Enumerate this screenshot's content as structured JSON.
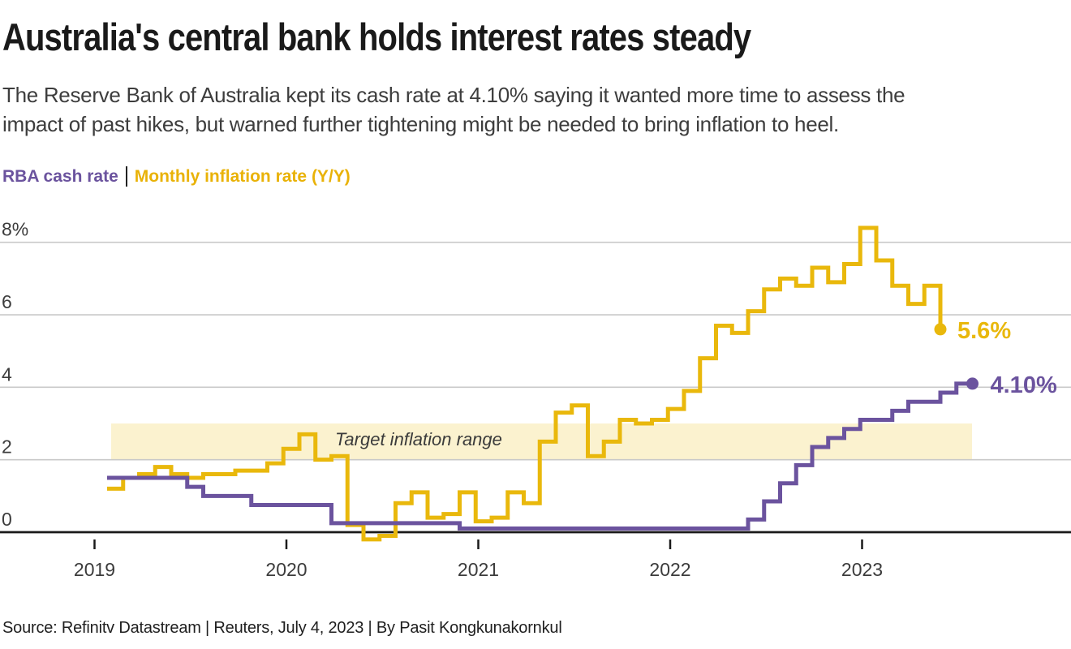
{
  "header": {
    "title": "Australia's central bank holds interest rates steady",
    "subtitle_line1": "The Reserve Bank of Australia kept its cash rate at 4.10% saying it wanted more time to assess the",
    "subtitle_line2": "impact of past hikes, but warned further tightening might be needed to bring inflation to heel."
  },
  "legend": {
    "series1_label": "RBA cash rate",
    "separator": "|",
    "series2_label": "Monthly inflation rate (Y/Y)"
  },
  "colors": {
    "purple": "#6b539e",
    "gold": "#e9b80c",
    "band_fill": "#fbf2cf",
    "grid": "#c9c9c9",
    "axis": "#1a1a1a",
    "text_dark": "#1a1a1a",
    "text_gray": "#3d3d3d"
  },
  "chart_data": {
    "type": "line",
    "subtype": "step-monthly",
    "x_start": "2019-01",
    "x_tick_labels": [
      "2019",
      "2020",
      "2021",
      "2022",
      "2023"
    ],
    "y_axis": {
      "gridline_values": [
        8,
        6,
        4,
        2,
        0
      ],
      "tick_labels": [
        "8%",
        "6",
        "4",
        "2",
        "0"
      ],
      "ylim": [
        -0.6,
        8.6
      ],
      "grid": true
    },
    "target_band": {
      "label": "Target inflation range",
      "from": 2,
      "to": 3
    },
    "series": [
      {
        "name": "Monthly inflation rate (Y/Y)",
        "color": "#e9b80c",
        "end_label": "5.6%",
        "last_month": "2023-05",
        "end_style": "drop-dot",
        "values": [
          1.2,
          1.5,
          1.6,
          1.8,
          1.6,
          1.5,
          1.6,
          1.6,
          1.7,
          1.7,
          1.9,
          2.3,
          2.7,
          2.0,
          2.1,
          0.2,
          -0.2,
          -0.1,
          0.8,
          1.1,
          0.4,
          0.5,
          1.1,
          0.3,
          0.4,
          1.1,
          0.8,
          2.5,
          3.3,
          3.5,
          2.1,
          2.5,
          3.1,
          3.0,
          3.1,
          3.4,
          3.9,
          4.8,
          5.7,
          5.5,
          6.1,
          6.7,
          7.0,
          6.8,
          7.3,
          6.9,
          7.4,
          8.4,
          7.5,
          6.8,
          6.3,
          6.8,
          5.6
        ]
      },
      {
        "name": "RBA cash rate",
        "color": "#6b539e",
        "end_label": "4.10%",
        "last_month": "2023-06",
        "end_style": "extend-dot",
        "values": [
          1.5,
          1.5,
          1.5,
          1.5,
          1.5,
          1.25,
          1.0,
          1.0,
          1.0,
          0.75,
          0.75,
          0.75,
          0.75,
          0.75,
          0.25,
          0.25,
          0.25,
          0.25,
          0.25,
          0.25,
          0.25,
          0.25,
          0.1,
          0.1,
          0.1,
          0.1,
          0.1,
          0.1,
          0.1,
          0.1,
          0.1,
          0.1,
          0.1,
          0.1,
          0.1,
          0.1,
          0.1,
          0.1,
          0.1,
          0.1,
          0.35,
          0.85,
          1.35,
          1.85,
          2.35,
          2.6,
          2.85,
          3.1,
          3.1,
          3.35,
          3.6,
          3.6,
          3.85,
          4.1
        ]
      }
    ]
  },
  "footer": {
    "source": "Source: Refinitv Datastream | Reuters, July 4, 2023 | By Pasit Kongkunakornkul"
  }
}
